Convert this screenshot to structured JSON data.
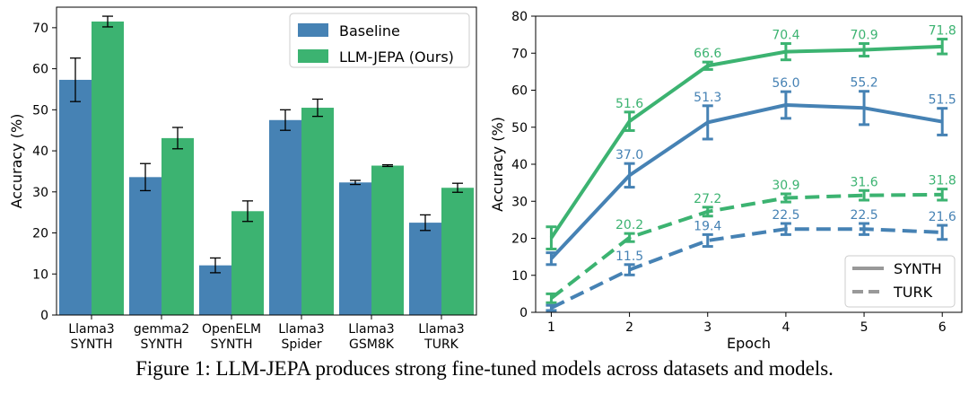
{
  "caption": "Figure 1: LLM-JEPA produces strong fine-tuned models across datasets and models.",
  "colors": {
    "baseline": "#4682b4",
    "jepa": "#3cb371",
    "axis": "#000000"
  },
  "chart_data": [
    {
      "type": "bar",
      "ylabel": "Accuracy (%)",
      "xlabel": "",
      "ylim": [
        0,
        75
      ],
      "yticks": [
        0,
        10,
        20,
        30,
        40,
        50,
        60,
        70
      ],
      "categories": [
        [
          "Llama3",
          "SYNTH"
        ],
        [
          "gemma2",
          "SYNTH"
        ],
        [
          "OpenELM",
          "SYNTH"
        ],
        [
          "Llama3",
          "Spider"
        ],
        [
          "Llama3",
          "GSM8K"
        ],
        [
          "Llama3",
          "TURK"
        ]
      ],
      "series": [
        {
          "name": "Baseline",
          "values": [
            57.3,
            33.6,
            12.1,
            47.5,
            32.3,
            22.5
          ],
          "errors": [
            5.3,
            3.3,
            1.8,
            2.5,
            0.5,
            1.9
          ]
        },
        {
          "name": "LLM-JEPA (Ours)",
          "values": [
            71.5,
            43.1,
            25.3,
            50.5,
            36.4,
            31.0
          ],
          "errors": [
            1.3,
            2.6,
            2.5,
            2.1,
            0.2,
            1.1
          ]
        }
      ],
      "legend": "top-right",
      "grid": false
    },
    {
      "type": "line",
      "xlabel": "Epoch",
      "ylabel": "Accuracy (%)",
      "xlim": [
        0.8,
        6.25
      ],
      "ylim": [
        0,
        80
      ],
      "xticks": [
        1,
        2,
        3,
        4,
        5,
        6
      ],
      "yticks": [
        0,
        10,
        20,
        30,
        40,
        50,
        60,
        70,
        80
      ],
      "x": [
        1,
        2,
        3,
        4,
        5,
        6
      ],
      "series": [
        {
          "name": "SYNTH LLM-JEPA",
          "color": "jepa",
          "dash": false,
          "values": [
            20.1,
            51.6,
            66.6,
            70.4,
            70.9,
            71.8
          ],
          "errors": [
            3.0,
            2.5,
            1.0,
            2.2,
            1.7,
            2.0
          ],
          "labels": [
            "",
            "51.6",
            "66.6",
            "70.4",
            "70.9",
            "71.8"
          ]
        },
        {
          "name": "SYNTH Baseline",
          "color": "baseline",
          "dash": false,
          "values": [
            14.5,
            37.0,
            51.3,
            56.0,
            55.2,
            51.5
          ],
          "errors": [
            1.6,
            3.2,
            4.5,
            3.6,
            4.5,
            3.6
          ],
          "labels": [
            "",
            "37.0",
            "51.3",
            "56.0",
            "55.2",
            "51.5"
          ]
        },
        {
          "name": "TURK LLM-JEPA",
          "color": "jepa",
          "dash": true,
          "values": [
            3.8,
            20.2,
            27.2,
            30.9,
            31.6,
            31.8
          ],
          "errors": [
            1.2,
            1.1,
            1.2,
            1.1,
            1.3,
            1.5
          ],
          "labels": [
            "",
            "20.2",
            "27.2",
            "30.9",
            "31.6",
            "31.8"
          ]
        },
        {
          "name": "TURK Baseline",
          "color": "baseline",
          "dash": true,
          "values": [
            1.2,
            11.5,
            19.4,
            22.5,
            22.5,
            21.6
          ],
          "errors": [
            0.7,
            1.4,
            1.6,
            1.5,
            1.5,
            1.9
          ],
          "labels": [
            "",
            "11.5",
            "19.4",
            "22.5",
            "22.5",
            "21.6"
          ]
        }
      ],
      "legend_entries": [
        {
          "label": "SYNTH",
          "dash": false
        },
        {
          "label": "TURK",
          "dash": true
        }
      ],
      "legend": "bottom-right",
      "grid": false
    }
  ]
}
